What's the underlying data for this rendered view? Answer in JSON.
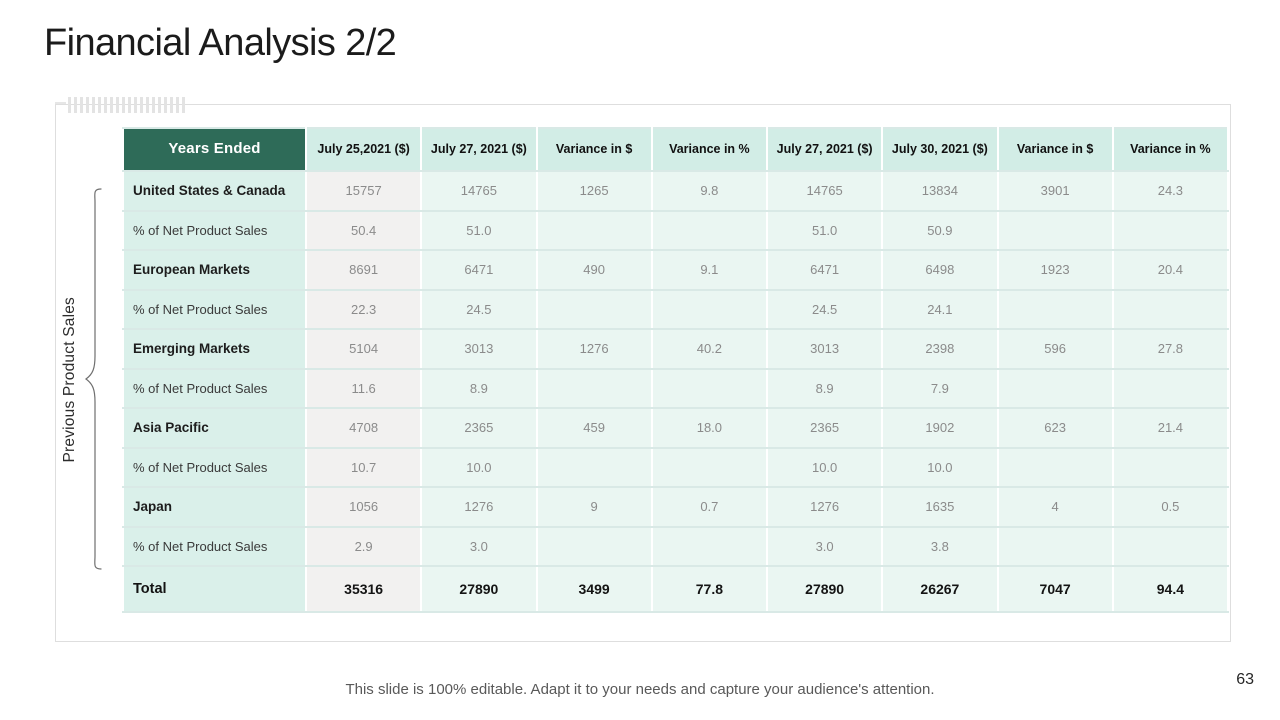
{
  "slide": {
    "title": "Financial Analysis 2/2",
    "side_label": "Previous Product Sales",
    "footer": "This slide is 100% editable. Adapt it to your needs and capture your audience's attention.",
    "page_number": "63"
  },
  "table": {
    "header_first": "Years Ended",
    "columns": [
      "July 25,2021 ($)",
      "July 27, 2021 ($)",
      "Variance in $",
      "Variance in %",
      "July 27, 2021 ($)",
      "July 30, 2021 ($)",
      "Variance in $",
      "Variance in %"
    ],
    "rows": [
      {
        "label": "United States & Canada",
        "bold": true,
        "total": false,
        "values": [
          "15757",
          "14765",
          "1265",
          "9.8",
          "14765",
          "13834",
          "3901",
          "24.3"
        ]
      },
      {
        "label": "% of Net Product Sales",
        "bold": false,
        "total": false,
        "values": [
          "50.4",
          "51.0",
          "",
          "",
          "51.0",
          "50.9",
          "",
          ""
        ]
      },
      {
        "label": "European Markets",
        "bold": true,
        "total": false,
        "values": [
          "8691",
          "6471",
          "490",
          "9.1",
          "6471",
          "6498",
          "1923",
          "20.4"
        ]
      },
      {
        "label": "% of Net Product Sales",
        "bold": false,
        "total": false,
        "values": [
          "22.3",
          "24.5",
          "",
          "",
          "24.5",
          "24.1",
          "",
          ""
        ]
      },
      {
        "label": "Emerging Markets",
        "bold": true,
        "total": false,
        "values": [
          "5104",
          "3013",
          "1276",
          "40.2",
          "3013",
          "2398",
          "596",
          "27.8"
        ]
      },
      {
        "label": "% of Net Product Sales",
        "bold": false,
        "total": false,
        "values": [
          "11.6",
          "8.9",
          "",
          "",
          "8.9",
          "7.9",
          "",
          ""
        ]
      },
      {
        "label": "Asia Pacific",
        "bold": true,
        "total": false,
        "values": [
          "4708",
          "2365",
          "459",
          "18.0",
          "2365",
          "1902",
          "623",
          "21.4"
        ]
      },
      {
        "label": "% of Net Product Sales",
        "bold": false,
        "total": false,
        "values": [
          "10.7",
          "10.0",
          "",
          "",
          "10.0",
          "10.0",
          "",
          ""
        ]
      },
      {
        "label": "Japan",
        "bold": true,
        "total": false,
        "values": [
          "1056",
          "1276",
          "9",
          "0.7",
          "1276",
          "1635",
          "4",
          "0.5"
        ]
      },
      {
        "label": "% of Net Product Sales",
        "bold": false,
        "total": false,
        "values": [
          "2.9",
          "3.0",
          "",
          "",
          "3.0",
          "3.8",
          "",
          ""
        ]
      },
      {
        "label": "Total",
        "bold": true,
        "total": true,
        "values": [
          "35316",
          "27890",
          "3499",
          "77.8",
          "27890",
          "26267",
          "7047",
          "94.4"
        ]
      }
    ]
  },
  "colors": {
    "header_green": "#2E6B58",
    "header_mint": "#D2EDE6",
    "label_mint": "#DAF0EA",
    "cell_gray": "#F2F1F0",
    "cell_mint": "#EAF6F2",
    "number_gray": "#8B8B8B"
  }
}
